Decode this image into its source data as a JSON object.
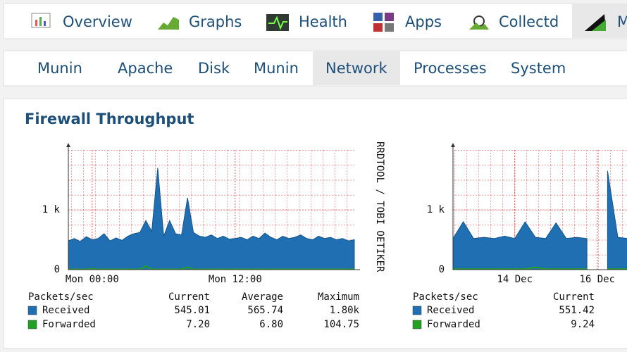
{
  "nav": {
    "items": [
      "Overview",
      "Graphs",
      "Health",
      "Apps",
      "Collectd",
      "Munin"
    ]
  },
  "subnav": {
    "items": [
      "Munin",
      "Apache",
      "Disk",
      "Munin",
      "Network",
      "Processes",
      "System"
    ],
    "active_index": 4
  },
  "panel": {
    "title": "Firewall Throughput"
  },
  "chart_data": [
    {
      "type": "area",
      "watermark": "RRDTOOL / TOBI OETIKER",
      "x": [
        -2,
        -1.5,
        -1,
        -0.5,
        0,
        0.5,
        1,
        1.5,
        2,
        2.5,
        3,
        3.5,
        4,
        4.5,
        5,
        5.5,
        6,
        6.5,
        7,
        7.5,
        8,
        8.5,
        9,
        9.5,
        10,
        10.5,
        11,
        11.5,
        12,
        12.5,
        13,
        13.5,
        14,
        14.5,
        15,
        15.5,
        16,
        16.5,
        17,
        17.5,
        18,
        18.5,
        19,
        19.5,
        20,
        20.5,
        21,
        21.5,
        22
      ],
      "series": [
        {
          "name": "Received",
          "color": "#1f6fb2",
          "values": [
            480,
            520,
            470,
            550,
            500,
            520,
            600,
            480,
            530,
            490,
            560,
            600,
            620,
            820,
            640,
            1700,
            560,
            820,
            600,
            580,
            1200,
            620,
            560,
            540,
            580,
            520,
            560,
            510,
            520,
            540,
            500,
            560,
            520,
            610,
            540,
            500,
            560,
            520,
            540,
            580,
            520,
            500,
            560,
            520,
            540,
            500,
            520,
            480,
            500
          ]
        },
        {
          "name": "Forwarded",
          "color": "#21a121",
          "values": [
            6,
            6,
            6,
            6,
            15,
            6,
            6,
            6,
            6,
            6,
            6,
            6,
            6,
            60,
            6,
            6,
            6,
            6,
            6,
            6,
            40,
            6,
            6,
            6,
            6,
            6,
            6,
            6,
            6,
            6,
            6,
            6,
            6,
            6,
            6,
            6,
            6,
            6,
            6,
            6,
            6,
            6,
            6,
            6,
            6,
            6,
            6,
            6,
            6
          ]
        }
      ],
      "xlim": [
        -2,
        22
      ],
      "ylim": [
        0,
        2000
      ],
      "xticks": [
        {
          "value": 0,
          "label": "Mon 00:00"
        },
        {
          "value": 12,
          "label": "Mon 12:00"
        }
      ],
      "yticks": [
        0,
        {
          "value": 1000,
          "label": "1 k"
        }
      ],
      "legend": {
        "header": "Packets/sec",
        "columns": [
          "Current",
          "Average",
          "Maximum"
        ],
        "rows": [
          [
            "545.01",
            "565.74",
            "1.80k"
          ],
          [
            "7.20",
            "6.80",
            "104.75"
          ]
        ]
      }
    },
    {
      "type": "area",
      "x": [
        12.5,
        12.75,
        13,
        13.25,
        13.5,
        13.75,
        14,
        14.25,
        14.5,
        14.75,
        15,
        15.25,
        15.5,
        15.75,
        16,
        16.25,
        16.5,
        16.75,
        17
      ],
      "series": [
        {
          "name": "Received",
          "color": "#1f6fb2",
          "values": [
            520,
            800,
            520,
            540,
            520,
            560,
            520,
            800,
            540,
            520,
            780,
            520,
            540,
            520,
            null,
            1650,
            540,
            520,
            530
          ]
        },
        {
          "name": "Forwarded",
          "color": "#21a121",
          "values": [
            9,
            9,
            9,
            9,
            9,
            9,
            9,
            9,
            40,
            9,
            9,
            9,
            9,
            9,
            null,
            9,
            9,
            9,
            9
          ]
        }
      ],
      "xlim": [
        12.5,
        20.5
      ],
      "ylim": [
        0,
        2000
      ],
      "xticks": [
        {
          "value": 14,
          "label": "14 Dec"
        },
        {
          "value": 16,
          "label": "16 Dec"
        }
      ],
      "yticks": [
        0,
        {
          "value": 1000,
          "label": "1 k"
        }
      ],
      "legend": {
        "header": "Packets/sec",
        "columns": [
          "Current",
          "Average"
        ],
        "rows": [
          [
            "551.42"
          ],
          [
            "9.24"
          ]
        ]
      }
    }
  ]
}
